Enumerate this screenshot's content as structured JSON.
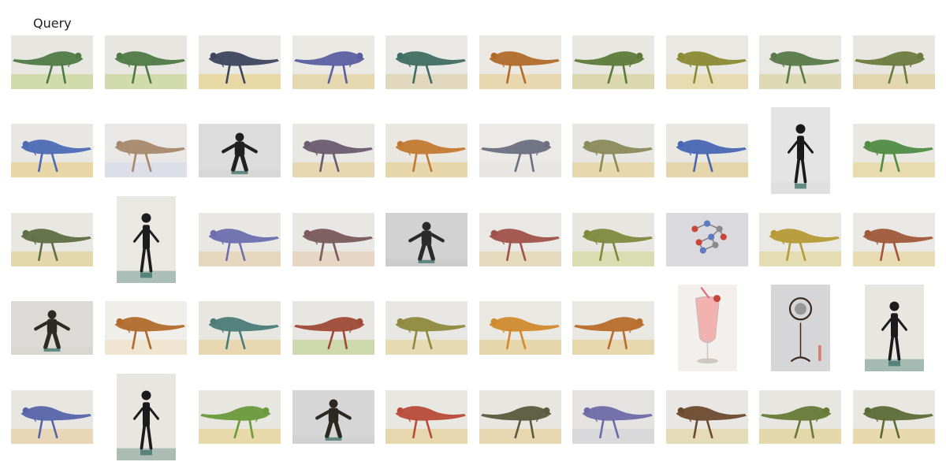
{
  "header": {
    "query_label": "Query"
  },
  "grid": {
    "rows": 5,
    "cols": 10,
    "items": [
      {
        "kind": "dinosaur",
        "color": "#4f7a46",
        "bg": "#e8e6e1",
        "ground": "#cdd8a2",
        "orient": "portrait-land"
      },
      {
        "kind": "dinosaur",
        "color": "#4f7a46",
        "bg": "#e8e6e1",
        "ground": "#cdd8a2",
        "orient": "land"
      },
      {
        "kind": "dinosaur",
        "color": "#3c465e",
        "bg": "#e9e8e4",
        "ground": "#e6d59a",
        "orient": "land"
      },
      {
        "kind": "dinosaur",
        "color": "#5b5fa0",
        "bg": "#ebe9e4",
        "ground": "#e4d3a4",
        "orient": "land"
      },
      {
        "kind": "dinosaur",
        "color": "#3f6e63",
        "bg": "#eae8e5",
        "ground": "#dfd4b6",
        "orient": "land"
      },
      {
        "kind": "dinosaur",
        "color": "#b06b2a",
        "bg": "#ebe8e3",
        "ground": "#e8d3a6",
        "orient": "land"
      },
      {
        "kind": "dinosaur",
        "color": "#5d7a3a",
        "bg": "#e9e7e2",
        "ground": "#d8d3a4",
        "orient": "land"
      },
      {
        "kind": "dinosaur",
        "color": "#8b8a35",
        "bg": "#eae8e3",
        "ground": "#e7d7a8",
        "orient": "land"
      },
      {
        "kind": "dinosaur",
        "color": "#5a7a4a",
        "bg": "#e9e8e3",
        "ground": "#dcd6ad",
        "orient": "land"
      },
      {
        "kind": "dinosaur",
        "color": "#6d7a3d",
        "bg": "#e8e6e1",
        "ground": "#e1d2a5",
        "orient": "land"
      },
      {
        "kind": "dinosaur",
        "color": "#4d6ab4",
        "bg": "#e8e7e3",
        "ground": "#e8d29c",
        "orient": "land"
      },
      {
        "kind": "dinosaur",
        "color": "#a7896a",
        "bg": "#e9e8e6",
        "ground": "#d9dce8",
        "orient": "land"
      },
      {
        "kind": "person",
        "color": "#202020",
        "bg": "#dcdcdc",
        "ground": "#cfcfcf",
        "orient": "land"
      },
      {
        "kind": "dinosaur",
        "color": "#6a5b70",
        "bg": "#e9e7e3",
        "ground": "#e6d5a9",
        "orient": "land"
      },
      {
        "kind": "dinosaur",
        "color": "#c27a32",
        "bg": "#eae7e1",
        "ground": "#e6d2a0",
        "orient": "land"
      },
      {
        "kind": "dinosaur",
        "color": "#6c6f80",
        "bg": "#ebeae7",
        "ground": "#e7e5e0",
        "orient": "land"
      },
      {
        "kind": "dinosaur",
        "color": "#8a8a5a",
        "bg": "#e8e6e2",
        "ground": "#e6d5a3",
        "orient": "land"
      },
      {
        "kind": "dinosaur",
        "color": "#4966b3",
        "bg": "#e8e7e2",
        "ground": "#e3d1a0",
        "orient": "land"
      },
      {
        "kind": "person",
        "color": "#1a1a1a",
        "bg": "#e4e4e4",
        "ground": "#d6d6d6",
        "orient": "portrait"
      },
      {
        "kind": "dinosaur",
        "color": "#4f8c44",
        "bg": "#e9e7e1",
        "ground": "#e8d9a6",
        "orient": "land"
      },
      {
        "kind": "dinosaur",
        "color": "#5e6e45",
        "bg": "#e8e7e2",
        "ground": "#e3d3a1",
        "orient": "land"
      },
      {
        "kind": "person",
        "color": "#1d1d1d",
        "bg": "#e9e8e2",
        "ground": "#3a6f66",
        "orient": "portrait"
      },
      {
        "kind": "dinosaur",
        "color": "#6d6fae",
        "bg": "#e9e7e3",
        "ground": "#e7d4b8",
        "orient": "land"
      },
      {
        "kind": "dinosaur",
        "color": "#7a5a5c",
        "bg": "#e9e7e3",
        "ground": "#e7d2bf",
        "orient": "land"
      },
      {
        "kind": "person",
        "color": "#2a2a2a",
        "bg": "#d2d2d2",
        "ground": "#c4c4c4",
        "orient": "land"
      },
      {
        "kind": "dinosaur",
        "color": "#a0524a",
        "bg": "#eae8e4",
        "ground": "#e4d7b6",
        "orient": "land"
      },
      {
        "kind": "dinosaur",
        "color": "#7d8a3e",
        "bg": "#e8e6e0",
        "ground": "#d7dba9",
        "orient": "land"
      },
      {
        "kind": "molecule",
        "color": "#6a6fb3",
        "bg": "#d9d9de",
        "ground": "#d0d0d6",
        "orient": "land"
      },
      {
        "kind": "dinosaur",
        "color": "#b59a36",
        "bg": "#e9e8e3",
        "ground": "#e2dba8",
        "orient": "land"
      },
      {
        "kind": "dinosaur",
        "color": "#a0583a",
        "bg": "#eae8e4",
        "ground": "#e9d8a9",
        "orient": "land"
      },
      {
        "kind": "person",
        "color": "#2d2b25",
        "bg": "#dcdad6",
        "ground": "#cfcdc9",
        "orient": "land"
      },
      {
        "kind": "dinosaur",
        "color": "#b06a2d",
        "bg": "#f0eeea",
        "ground": "#eee3cd",
        "orient": "land"
      },
      {
        "kind": "dinosaur",
        "color": "#4b7c78",
        "bg": "#e8e6e1",
        "ground": "#e8d3a7",
        "orient": "land"
      },
      {
        "kind": "dinosaur",
        "color": "#a04a37",
        "bg": "#e8e6e2",
        "ground": "#c8d6a2",
        "orient": "land"
      },
      {
        "kind": "dinosaur",
        "color": "#8f8a3e",
        "bg": "#e9e7e3",
        "ground": "#e5d7a9",
        "orient": "land"
      },
      {
        "kind": "dinosaur",
        "color": "#d08a2d",
        "bg": "#eae8e3",
        "ground": "#e6d2a2",
        "orient": "land"
      },
      {
        "kind": "dinosaur",
        "color": "#b76d2b",
        "bg": "#eae8e3",
        "ground": "#e6d3a3",
        "orient": "land"
      },
      {
        "kind": "drink",
        "color": "#f2b2b0",
        "bg": "#f2efec",
        "ground": "#e8e4e0",
        "orient": "portrait"
      },
      {
        "kind": "lamp",
        "color": "#3b2a1f",
        "bg": "#d6d6d8",
        "ground": "#cacaca",
        "orient": "portrait"
      },
      {
        "kind": "person",
        "color": "#1b1b1b",
        "bg": "#e7e6e0",
        "ground": "#2f6660",
        "orient": "portrait"
      },
      {
        "kind": "dinosaur",
        "color": "#5665a9",
        "bg": "#e8e6e1",
        "ground": "#e8d2b0",
        "orient": "land"
      },
      {
        "kind": "person",
        "color": "#1b1b1b",
        "bg": "#e7e6e0",
        "ground": "#3b6e63",
        "orient": "portrait"
      },
      {
        "kind": "dinosaur",
        "color": "#6a9a3a",
        "bg": "#e8e6e1",
        "ground": "#e7d6a0",
        "orient": "land"
      },
      {
        "kind": "person",
        "color": "#2b2922",
        "bg": "#d6d6d6",
        "ground": "#c8c8c8",
        "orient": "land"
      },
      {
        "kind": "dinosaur",
        "color": "#b84b3a",
        "bg": "#e9e7e2",
        "ground": "#e6d3a6",
        "orient": "land"
      },
      {
        "kind": "dinosaur",
        "color": "#5a5a3d",
        "bg": "#e8e6e1",
        "ground": "#e5d4a8",
        "orient": "land"
      },
      {
        "kind": "dinosaur",
        "color": "#6e6aa8",
        "bg": "#e4e3e1",
        "ground": "#d7d7d9",
        "orient": "land"
      },
      {
        "kind": "dinosaur",
        "color": "#6b4a2e",
        "bg": "#e9e7e3",
        "ground": "#e4d8b2",
        "orient": "land"
      },
      {
        "kind": "dinosaur",
        "color": "#667a37",
        "bg": "#e8e6e1",
        "ground": "#e3d3a0",
        "orient": "land"
      },
      {
        "kind": "dinosaur",
        "color": "#5c6c35",
        "bg": "#e9e7e2",
        "ground": "#e6d5a5",
        "orient": "land"
      }
    ]
  }
}
